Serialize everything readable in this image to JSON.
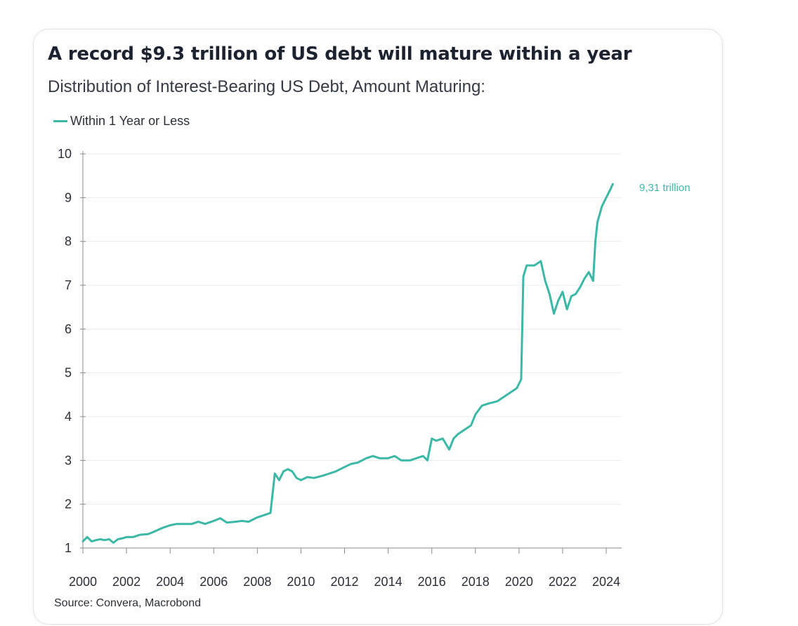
{
  "title": "A record $9.3 trillion of US debt will mature within a year",
  "subtitle": "Distribution of Interest-Bearing US Debt, Amount Maturing:",
  "source": "Source: Convera, Macrobond",
  "colors": {
    "series": "#3cb8a7",
    "grid": "#ececec",
    "axis": "#8a8a8a",
    "text": "#2b2f38"
  },
  "chart_data": {
    "type": "line",
    "title": "A record $9.3 trillion of US debt will mature within a year",
    "subtitle": "Distribution of Interest-Bearing US Debt, Amount Maturing:",
    "xlabel": "",
    "ylabel": "",
    "xlim": [
      2000,
      2025
    ],
    "ylim": [
      1,
      10
    ],
    "x_ticks": [
      "2000",
      "2002",
      "2004",
      "2006",
      "2008",
      "2010",
      "2012",
      "2014",
      "2016",
      "2018",
      "2020",
      "2022",
      "2024"
    ],
    "y_ticks": [
      "1",
      "2",
      "3",
      "4",
      "5",
      "6",
      "7",
      "8",
      "9",
      "10"
    ],
    "grid": "horizontal",
    "legend_position": "top-left",
    "annotation": "9,31 trillion",
    "series": [
      {
        "name": "Within 1 Year or Less",
        "color": "#3cb8a7",
        "x": [
          2000.0,
          2000.2,
          2000.4,
          2000.6,
          2000.8,
          2001.0,
          2001.2,
          2001.4,
          2001.6,
          2001.8,
          2002.0,
          2002.3,
          2002.6,
          2003.0,
          2003.3,
          2003.6,
          2004.0,
          2004.3,
          2004.6,
          2005.0,
          2005.3,
          2005.6,
          2006.0,
          2006.3,
          2006.6,
          2007.0,
          2007.3,
          2007.6,
          2008.0,
          2008.3,
          2008.6,
          2008.8,
          2009.0,
          2009.2,
          2009.4,
          2009.6,
          2009.8,
          2010.0,
          2010.3,
          2010.6,
          2011.0,
          2011.3,
          2011.6,
          2012.0,
          2012.3,
          2012.6,
          2013.0,
          2013.3,
          2013.6,
          2014.0,
          2014.3,
          2014.6,
          2015.0,
          2015.3,
          2015.6,
          2015.8,
          2016.0,
          2016.2,
          2016.5,
          2016.8,
          2017.0,
          2017.2,
          2017.5,
          2017.8,
          2018.0,
          2018.3,
          2018.6,
          2019.0,
          2019.3,
          2019.6,
          2019.9,
          2020.1,
          2020.2,
          2020.35,
          2020.5,
          2020.7,
          2021.0,
          2021.2,
          2021.4,
          2021.6,
          2021.8,
          2022.0,
          2022.2,
          2022.4,
          2022.6,
          2022.8,
          2023.0,
          2023.2,
          2023.4,
          2023.5,
          2023.6,
          2023.8,
          2024.0,
          2024.2,
          2024.3
        ],
        "values": [
          1.15,
          1.25,
          1.15,
          1.18,
          1.2,
          1.18,
          1.2,
          1.12,
          1.2,
          1.22,
          1.25,
          1.25,
          1.3,
          1.32,
          1.38,
          1.45,
          1.52,
          1.55,
          1.55,
          1.55,
          1.6,
          1.55,
          1.62,
          1.68,
          1.58,
          1.6,
          1.62,
          1.6,
          1.7,
          1.75,
          1.8,
          2.7,
          2.55,
          2.75,
          2.8,
          2.75,
          2.6,
          2.55,
          2.62,
          2.6,
          2.65,
          2.7,
          2.75,
          2.85,
          2.92,
          2.95,
          3.05,
          3.1,
          3.05,
          3.05,
          3.1,
          3.0,
          3.0,
          3.05,
          3.1,
          3.0,
          3.5,
          3.45,
          3.5,
          3.25,
          3.5,
          3.6,
          3.7,
          3.8,
          4.05,
          4.25,
          4.3,
          4.35,
          4.45,
          4.55,
          4.65,
          4.85,
          7.2,
          7.45,
          7.45,
          7.45,
          7.55,
          7.1,
          6.8,
          6.35,
          6.65,
          6.85,
          6.45,
          6.75,
          6.8,
          6.95,
          7.15,
          7.3,
          7.1,
          8.0,
          8.45,
          8.8,
          9.0,
          9.2,
          9.31
        ]
      }
    ]
  }
}
